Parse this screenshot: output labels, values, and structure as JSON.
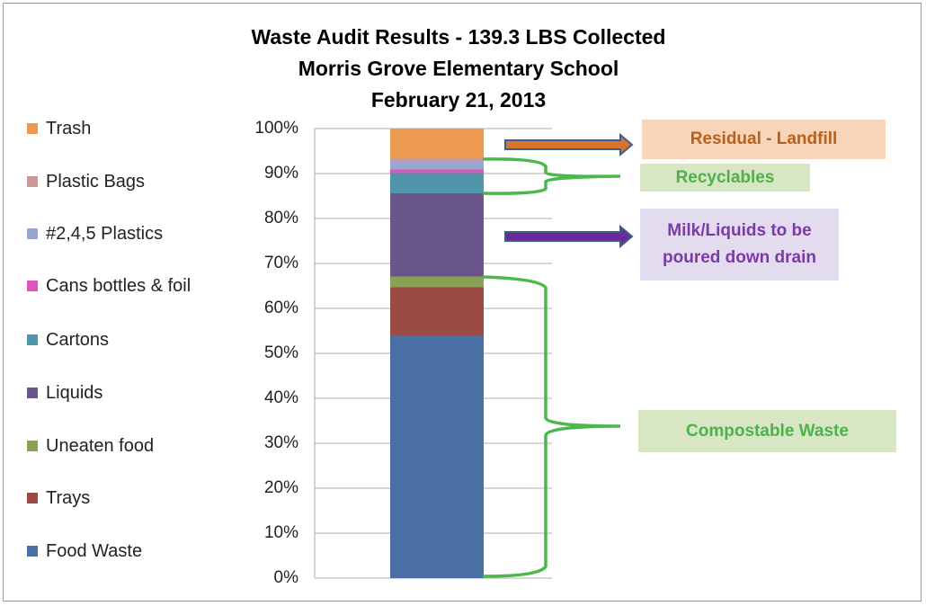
{
  "chart_data": {
    "type": "bar",
    "stacked": true,
    "title": [
      "Waste Audit Results - 139.3 LBS Collected",
      "Morris Grove Elementary School",
      "February 21, 2013"
    ],
    "ylim": [
      0,
      100
    ],
    "yticks": [
      "0%",
      "10%",
      "20%",
      "30%",
      "40%",
      "50%",
      "60%",
      "70%",
      "80%",
      "90%",
      "100%"
    ],
    "grid": true,
    "legend_position": "left",
    "series": [
      {
        "name": "Food Waste",
        "value": 54.0,
        "color": "#4a6fa5"
      },
      {
        "name": "Trays",
        "value": 10.7,
        "color": "#9c4a44"
      },
      {
        "name": "Uneaten food",
        "value": 2.4,
        "color": "#8aa052"
      },
      {
        "name": "Liquids",
        "value": 18.5,
        "color": "#6a5688"
      },
      {
        "name": "Cartons",
        "value": 4.5,
        "color": "#4f96a8"
      },
      {
        "name": "Cans bottles & foil",
        "value": 0.8,
        "color": "#dd55bb"
      },
      {
        "name": "#2,4,5 Plastics",
        "value": 1.8,
        "color": "#96a8cf"
      },
      {
        "name": "Plastic Bags",
        "value": 0.9,
        "color": "#c99a98"
      },
      {
        "name": "Trash",
        "value": 6.4,
        "color": "#eb9a50"
      }
    ],
    "annotations": [
      {
        "text": "Residual - Landfill",
        "color": "#b8611d",
        "bg": "#f8d5b8"
      },
      {
        "text": "Recyclables",
        "color": "#4cb24c",
        "bg": "#d8e6c4"
      },
      {
        "text": "Milk/Liquids to be poured down drain",
        "color": "#7a3aa8",
        "bg": "#e3dcee"
      },
      {
        "text": "Compostable Waste",
        "color": "#4cb24c",
        "bg": "#d8e6c4"
      }
    ]
  }
}
